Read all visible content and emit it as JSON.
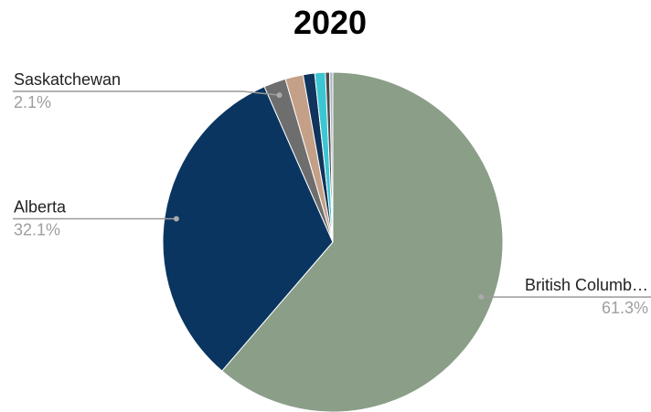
{
  "chart_data": {
    "type": "pie",
    "title": "2020",
    "slices": [
      {
        "label": "British Columbia",
        "display_label": "British Columb…",
        "value": 61.3,
        "value_label": "61.3%",
        "color": "#8a9e88",
        "callout": "right"
      },
      {
        "label": "Alberta",
        "display_label": "Alberta",
        "value": 32.1,
        "value_label": "32.1%",
        "color": "#0a3560",
        "callout": "left"
      },
      {
        "label": "Saskatchewan",
        "display_label": "Saskatchewan",
        "value": 2.1,
        "value_label": "2.1%",
        "color": "#6f6e6e",
        "callout": "left"
      },
      {
        "label": "",
        "value": 1.7,
        "color": "#c4a088"
      },
      {
        "label": "",
        "value": 1.1,
        "color": "#10345c"
      },
      {
        "label": "",
        "value": 1.0,
        "color": "#3cc6d4"
      },
      {
        "label": "",
        "value": 0.4,
        "color": "#4a4a4a"
      },
      {
        "label": "",
        "value": 0.3,
        "color": "#b0b8c8"
      }
    ],
    "start_angle": "12 o'clock",
    "direction": "clockwise"
  }
}
